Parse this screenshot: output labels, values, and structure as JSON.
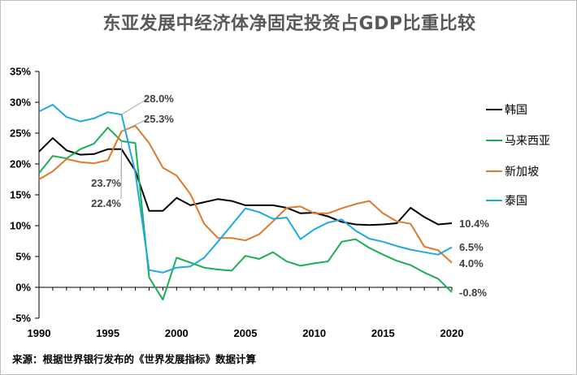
{
  "chart_data": {
    "type": "line",
    "title": "东亚发展中经济体净固定投资占GDP比重比较",
    "source": "来源：根据世界银行发布的《世界发展指标》数据计算",
    "xlabel": "",
    "ylabel": "",
    "x": [
      1990,
      1991,
      1992,
      1993,
      1994,
      1995,
      1996,
      1997,
      1998,
      1999,
      2000,
      2001,
      2002,
      2003,
      2004,
      2005,
      2006,
      2007,
      2008,
      2009,
      2010,
      2011,
      2012,
      2013,
      2014,
      2015,
      2016,
      2017,
      2018,
      2019,
      2020
    ],
    "xlim": [
      1990,
      2020
    ],
    "xticks": [
      "1990",
      "1995",
      "2000",
      "2005",
      "2010",
      "2015",
      "2020"
    ],
    "ylim": [
      -5,
      35
    ],
    "yticks": [
      "-5%",
      "0%",
      "5%",
      "10%",
      "15%",
      "20%",
      "25%",
      "30%",
      "35%"
    ],
    "series": [
      {
        "name": "韩国",
        "color": "#000000",
        "values": [
          22.0,
          24.2,
          22.2,
          21.5,
          21.6,
          22.4,
          22.4,
          18.9,
          12.4,
          12.4,
          14.5,
          13.3,
          13.8,
          14.3,
          14.0,
          13.3,
          13.3,
          13.3,
          12.9,
          12.0,
          12.1,
          11.5,
          10.6,
          10.2,
          10.1,
          10.2,
          10.4,
          12.9,
          11.4,
          10.2,
          10.4
        ]
      },
      {
        "name": "马来西亚",
        "color": "#1aaf54",
        "values": [
          18.5,
          21.3,
          20.9,
          22.4,
          23.3,
          25.9,
          23.7,
          23.4,
          1.6,
          -2.0,
          4.8,
          4.0,
          3.2,
          2.9,
          2.7,
          5.1,
          4.6,
          5.7,
          4.2,
          3.5,
          3.9,
          4.2,
          7.4,
          7.8,
          6.4,
          5.3,
          4.3,
          3.6,
          2.4,
          1.4,
          -0.8
        ]
      },
      {
        "name": "新加坡",
        "color": "#e0782a",
        "values": [
          17.5,
          18.8,
          20.8,
          20.3,
          20.1,
          20.6,
          25.3,
          26.2,
          23.4,
          19.4,
          18.1,
          15.1,
          10.3,
          8.0,
          8.0,
          7.6,
          8.6,
          10.7,
          12.9,
          13.1,
          12.0,
          12.0,
          12.8,
          13.5,
          14.0,
          12.0,
          10.7,
          10.3,
          6.6,
          6.0,
          4.0
        ]
      },
      {
        "name": "泰国",
        "color": "#1fa8e0",
        "values": [
          28.5,
          29.6,
          27.6,
          26.9,
          27.4,
          28.4,
          28.0,
          18.6,
          2.8,
          2.4,
          3.2,
          3.4,
          4.8,
          7.4,
          10.1,
          12.8,
          12.2,
          11.1,
          11.3,
          7.8,
          9.4,
          10.5,
          11.0,
          9.2,
          7.9,
          7.4,
          6.7,
          6.1,
          5.7,
          5.3,
          6.5
        ]
      }
    ],
    "end_labels": [
      {
        "series": "韩国",
        "text": "10.4%"
      },
      {
        "series": "马来西亚",
        "text": "-0.8%"
      },
      {
        "series": "新加坡",
        "text": "4.0%"
      },
      {
        "series": "泰国",
        "text": "6.5%"
      }
    ],
    "annotations": [
      {
        "series": "泰国",
        "x": 1996,
        "text": "28.0%"
      },
      {
        "series": "新加坡",
        "x": 1996,
        "text": "25.3%"
      },
      {
        "series": "马来西亚",
        "x": 1996,
        "text": "23.7%"
      },
      {
        "series": "韩国",
        "x": 1996,
        "text": "22.4%"
      }
    ],
    "legend_position": "right",
    "grid": false
  }
}
